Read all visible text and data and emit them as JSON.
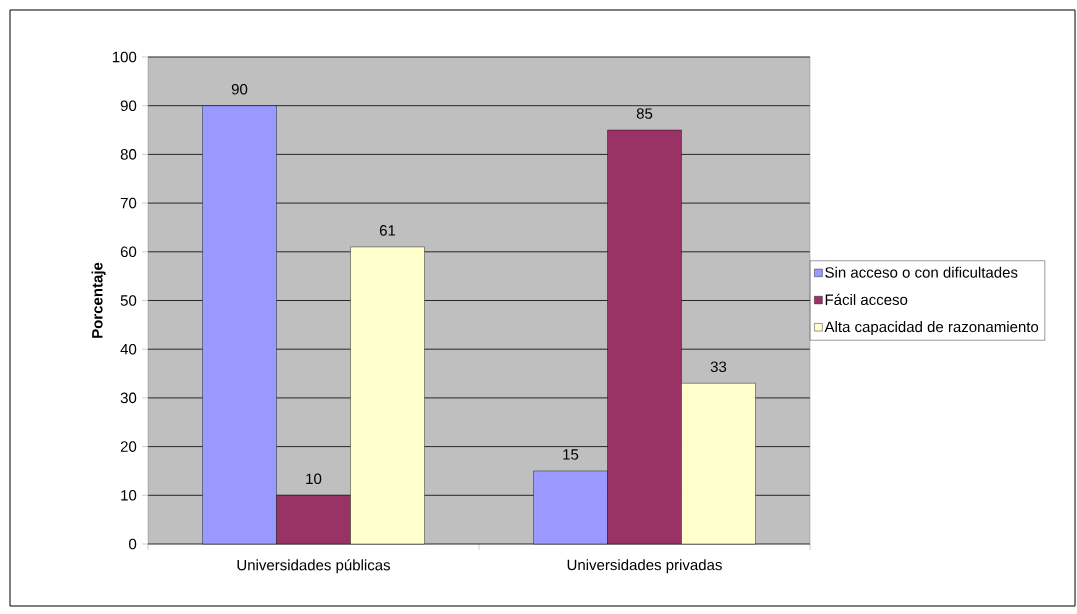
{
  "chart_data": {
    "type": "bar",
    "ylabel": "Porcentaje",
    "categories": [
      "Universidades públicas",
      "Universidades privadas"
    ],
    "series": [
      {
        "name": "Sin acceso o con dificultades",
        "color": "#9999ff",
        "values": [
          90,
          15
        ]
      },
      {
        "name": "Fácil acceso",
        "color": "#993366",
        "values": [
          10,
          85
        ]
      },
      {
        "name": "Alta capacidad de razonamiento",
        "color": "#ffffcc",
        "values": [
          61,
          33
        ]
      }
    ],
    "ylim": [
      0,
      100
    ],
    "yticks": [
      0,
      10,
      20,
      30,
      40,
      50,
      60,
      70,
      80,
      90,
      100
    ],
    "grid": "y",
    "legend": "right",
    "data_labels": true
  }
}
